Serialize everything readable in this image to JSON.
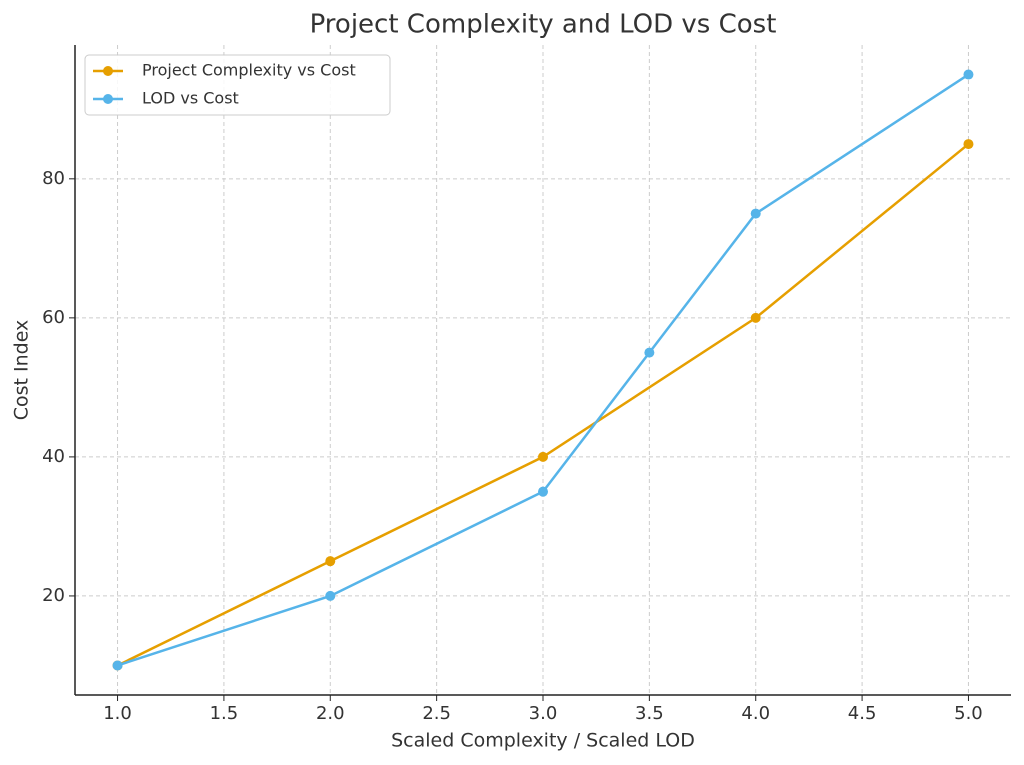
{
  "chart_data": {
    "type": "line",
    "title": "Project Complexity and LOD vs Cost",
    "x_label": "Scaled Complexity / Scaled LOD",
    "y_label": "Cost Index",
    "series": [
      {
        "name": "Project Complexity vs Cost",
        "color": "#e69f00",
        "x": [
          1,
          2,
          3,
          4,
          5
        ],
        "values": [
          10,
          25,
          40,
          60,
          85
        ]
      },
      {
        "name": "LOD vs Cost",
        "color": "#56b4e9",
        "x": [
          1,
          2,
          3,
          3.5,
          4,
          5
        ],
        "values": [
          10,
          20,
          35,
          55,
          75,
          95
        ]
      }
    ],
    "xlim": [
      0.8,
      5.2
    ],
    "xticks": [
      {
        "value": 1,
        "label": "1.0"
      },
      {
        "value": 1.5,
        "label": "1.5"
      },
      {
        "value": 2,
        "label": "2.0"
      },
      {
        "value": 2.5,
        "label": "2.5"
      },
      {
        "value": 3,
        "label": "3.0"
      },
      {
        "value": 3.5,
        "label": "3.5"
      },
      {
        "value": 4,
        "label": "4.0"
      },
      {
        "value": 4.5,
        "label": "4.5"
      },
      {
        "value": 5,
        "label": "5.0"
      }
    ],
    "ylim": [
      5.75,
      99.25
    ],
    "yticks": [
      20,
      40,
      60,
      80
    ],
    "grid": true,
    "legend": "upper-left"
  }
}
